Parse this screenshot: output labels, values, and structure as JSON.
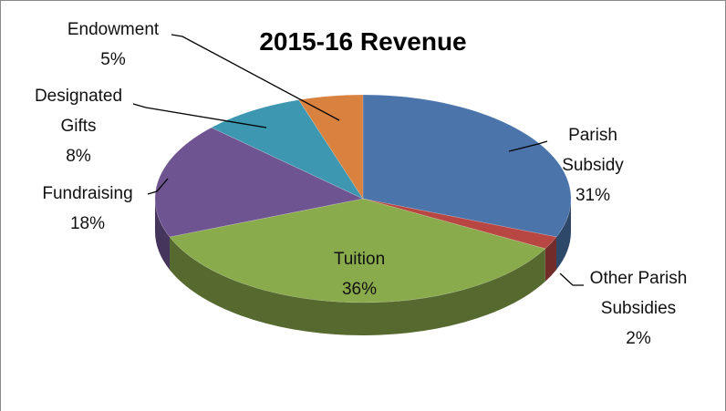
{
  "chart_data": {
    "type": "pie",
    "title": "2015-16 Revenue",
    "categories": [
      "Parish Subsidy",
      "Other Parish Subsidies",
      "Tuition",
      "Fundraising",
      "Designated Gifts",
      "Endowment"
    ],
    "values": [
      31,
      2,
      36,
      18,
      8,
      5
    ],
    "value_labels": [
      "31%",
      "2%",
      "36%",
      "18%",
      "8%",
      "5%"
    ],
    "colors": [
      "#4a74aa",
      "#b84744",
      "#8aab4c",
      "#6f5492",
      "#3e97b1",
      "#d9813f"
    ]
  }
}
